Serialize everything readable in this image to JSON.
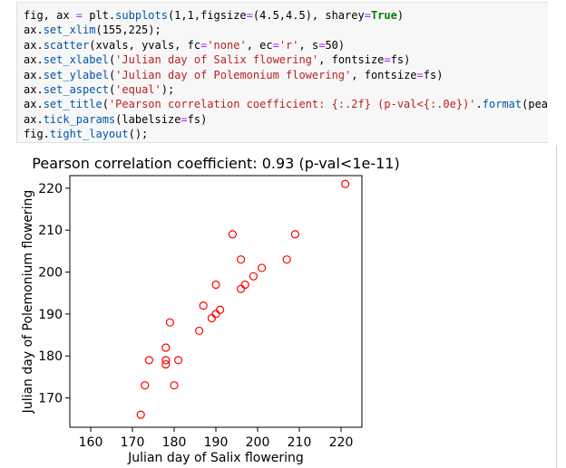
{
  "code_cell": {
    "lines": [
      [
        {
          "t": "fig, ax ",
          "c": "plain"
        },
        {
          "t": "=",
          "c": "op"
        },
        {
          "t": " plt.",
          "c": "plain"
        },
        {
          "t": "subplots",
          "c": "fn"
        },
        {
          "t": "(1,1,figsize",
          "c": "plain"
        },
        {
          "t": "=",
          "c": "op"
        },
        {
          "t": "(4.5,4.5), sharey",
          "c": "plain"
        },
        {
          "t": "=",
          "c": "op"
        },
        {
          "t": "True",
          "c": "kw"
        },
        {
          "t": ")",
          "c": "plain"
        }
      ],
      [
        {
          "t": "ax.",
          "c": "plain"
        },
        {
          "t": "set_xlim",
          "c": "fn"
        },
        {
          "t": "(155,225);",
          "c": "plain"
        }
      ],
      [
        {
          "t": "ax.",
          "c": "plain"
        },
        {
          "t": "scatter",
          "c": "fn"
        },
        {
          "t": "(xvals, yvals, fc",
          "c": "plain"
        },
        {
          "t": "=",
          "c": "op"
        },
        {
          "t": "'none'",
          "c": "str"
        },
        {
          "t": ", ec",
          "c": "plain"
        },
        {
          "t": "=",
          "c": "op"
        },
        {
          "t": "'r'",
          "c": "str"
        },
        {
          "t": ", s",
          "c": "plain"
        },
        {
          "t": "=",
          "c": "op"
        },
        {
          "t": "50)",
          "c": "plain"
        }
      ],
      [
        {
          "t": "ax.",
          "c": "plain"
        },
        {
          "t": "set_xlabel",
          "c": "fn"
        },
        {
          "t": "(",
          "c": "plain"
        },
        {
          "t": "'Julian day of Salix flowering'",
          "c": "str"
        },
        {
          "t": ", fontsize",
          "c": "plain"
        },
        {
          "t": "=",
          "c": "op"
        },
        {
          "t": "fs)",
          "c": "plain"
        }
      ],
      [
        {
          "t": "ax.",
          "c": "plain"
        },
        {
          "t": "set_ylabel",
          "c": "fn"
        },
        {
          "t": "(",
          "c": "plain"
        },
        {
          "t": "'Julian day of Polemonium flowering'",
          "c": "str"
        },
        {
          "t": ", fontsize",
          "c": "plain"
        },
        {
          "t": "=",
          "c": "op"
        },
        {
          "t": "fs)",
          "c": "plain"
        }
      ],
      [
        {
          "t": "ax.",
          "c": "plain"
        },
        {
          "t": "set_aspect",
          "c": "fn"
        },
        {
          "t": "(",
          "c": "plain"
        },
        {
          "t": "'equal'",
          "c": "str"
        },
        {
          "t": ");",
          "c": "plain"
        }
      ],
      [
        {
          "t": "ax.",
          "c": "plain"
        },
        {
          "t": "set_title",
          "c": "fn"
        },
        {
          "t": "(",
          "c": "plain"
        },
        {
          "t": "'Pearson correlation coefficient: {:.2f} (p-val<{:.0e})'",
          "c": "str"
        },
        {
          "t": ".",
          "c": "plain"
        },
        {
          "t": "format",
          "c": "fn"
        },
        {
          "t": "(pears",
          "c": "plain"
        }
      ],
      [
        {
          "t": "ax.",
          "c": "plain"
        },
        {
          "t": "tick_params",
          "c": "fn"
        },
        {
          "t": "(labelsize",
          "c": "plain"
        },
        {
          "t": "=",
          "c": "op"
        },
        {
          "t": "fs)",
          "c": "plain"
        }
      ],
      [
        {
          "t": "fig.",
          "c": "plain"
        },
        {
          "t": "tight_layout",
          "c": "fn"
        },
        {
          "t": "();",
          "c": "plain"
        }
      ]
    ]
  },
  "chart_data": {
    "type": "scatter",
    "title": "Pearson correlation coefficient: 0.93 (p-val<1e-11)",
    "xlabel": "Julian day of Salix flowering",
    "ylabel": "Julian day of Polemonium flowering",
    "xlim": [
      155,
      225
    ],
    "ylim": [
      163,
      223
    ],
    "xticks": [
      160,
      170,
      180,
      190,
      200,
      210,
      220
    ],
    "yticks": [
      170,
      180,
      190,
      200,
      210,
      220
    ],
    "grid": false,
    "marker": {
      "face": "none",
      "edge": "#ff0000"
    },
    "points": [
      {
        "x": 172,
        "y": 166
      },
      {
        "x": 173,
        "y": 173
      },
      {
        "x": 174,
        "y": 179
      },
      {
        "x": 178,
        "y": 178
      },
      {
        "x": 178,
        "y": 179
      },
      {
        "x": 178,
        "y": 182
      },
      {
        "x": 179,
        "y": 188
      },
      {
        "x": 180,
        "y": 173
      },
      {
        "x": 181,
        "y": 179
      },
      {
        "x": 186,
        "y": 186
      },
      {
        "x": 187,
        "y": 192
      },
      {
        "x": 189,
        "y": 189
      },
      {
        "x": 190,
        "y": 190
      },
      {
        "x": 190,
        "y": 197
      },
      {
        "x": 191,
        "y": 191
      },
      {
        "x": 194,
        "y": 209
      },
      {
        "x": 196,
        "y": 196
      },
      {
        "x": 196,
        "y": 203
      },
      {
        "x": 197,
        "y": 197
      },
      {
        "x": 199,
        "y": 199
      },
      {
        "x": 201,
        "y": 201
      },
      {
        "x": 207,
        "y": 203
      },
      {
        "x": 209,
        "y": 209
      },
      {
        "x": 221,
        "y": 221
      }
    ]
  }
}
